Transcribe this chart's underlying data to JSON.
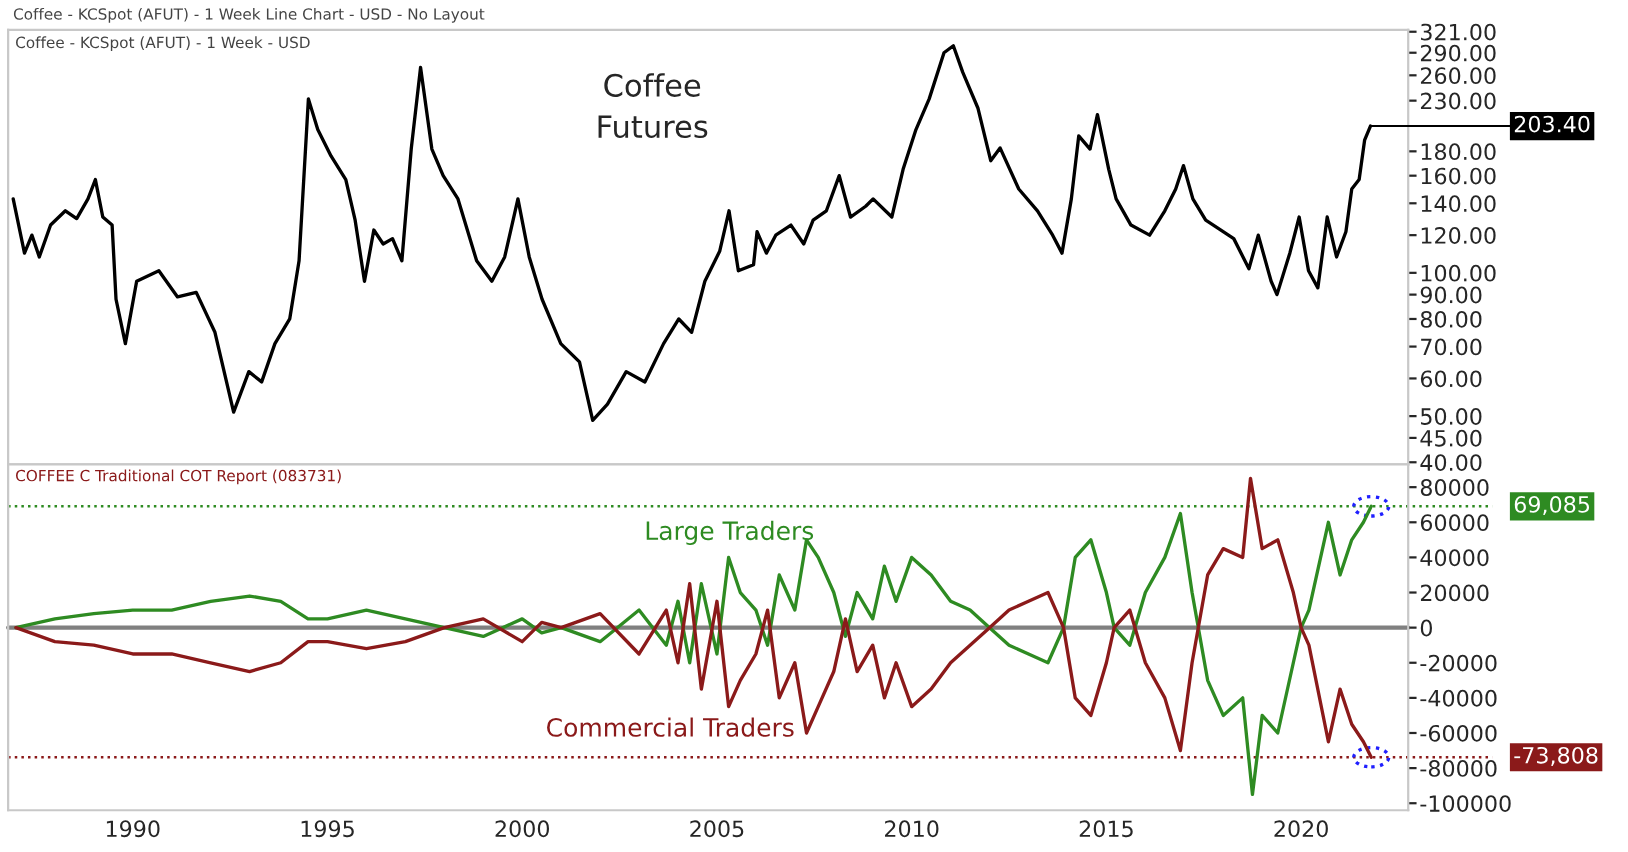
{
  "chart_data": [
    {
      "type": "line",
      "subtitle": "Coffee - KCSpot (AFUT) - 1 Week - USD",
      "annotations": [
        "Coffee - KCSpot (AFUT) - 1 Week Line Chart - USD - No Layout",
        "Coffee\nFutures",
        {
          "text": "203.40",
          "x": 2021.78,
          "y": 203.4
        }
      ],
      "series": [
        {
          "color": "#000000",
          "x": [
            1986.93,
            1987.22,
            1987.41,
            1987.6,
            1987.89,
            1988.27,
            1988.56,
            1988.85,
            1989.04,
            1989.23,
            1989.47,
            1989.57,
            1989.81,
            1990.1,
            1990.67,
            1991.15,
            1991.63,
            1992.11,
            1992.59,
            1992.98,
            1993.31,
            1993.65,
            1994.03,
            1994.27,
            1994.51,
            1994.75,
            1995.09,
            1995.47,
            1995.71,
            1995.95,
            1996.19,
            1996.43,
            1996.67,
            1996.91,
            1997.15,
            1997.39,
            1997.68,
            1997.97,
            1998.35,
            1998.83,
            1999.22,
            1999.55,
            1999.89,
            2000.18,
            2000.51,
            2000.99,
            2001.47,
            2001.81,
            2002.19,
            2002.67,
            2003.15,
            2003.63,
            2004.02,
            2004.35,
            2004.69,
            2005.07,
            2005.31,
            2005.55,
            2005.94,
            2006.03,
            2006.27,
            2006.51,
            2006.9,
            2007.23,
            2007.47,
            2007.81,
            2008.14,
            2008.43,
            2008.82,
            2009.01,
            2009.49,
            2009.78,
            2010.11,
            2010.45,
            2010.83,
            2011.07,
            2011.31,
            2011.7,
            2012.03,
            2012.27,
            2012.75,
            2013.23,
            2013.62,
            2013.86,
            2014.1,
            2014.29,
            2014.58,
            2014.77,
            2015.06,
            2015.25,
            2015.63,
            2016.11,
            2016.5,
            2016.78,
            2016.98,
            2017.22,
            2017.55,
            2017.94,
            2018.27,
            2018.66,
            2018.9,
            2019.23,
            2019.38,
            2019.71,
            2019.95,
            2020.19,
            2020.43,
            2020.67,
            2020.91,
            2021.15,
            2021.3,
            2021.49,
            2021.63,
            2021.78
          ],
          "values": [
            143,
            110,
            120,
            108,
            126,
            135,
            130,
            143,
            157,
            131,
            126,
            88,
            71,
            96,
            101,
            89,
            91,
            75,
            51,
            62,
            59,
            71,
            80,
            106,
            232,
            200,
            176,
            157,
            129,
            96,
            123,
            115,
            118,
            106,
            182,
            270,
            182,
            160,
            143,
            106,
            96,
            108,
            143,
            108,
            88,
            71,
            65,
            49,
            53,
            62,
            59,
            71,
            80,
            75,
            96,
            111,
            135,
            101,
            104,
            122,
            110,
            120,
            126,
            115,
            129,
            135,
            160,
            131,
            138,
            143,
            131,
            165,
            200,
            232,
            290,
            300,
            264,
            222,
            172,
            183,
            150,
            135,
            120,
            110,
            143,
            194,
            182,
            215,
            165,
            143,
            126,
            120,
            135,
            150,
            168,
            143,
            129,
            123,
            118,
            102,
            120,
            96,
            90,
            110,
            131,
            101,
            93,
            131,
            108,
            122,
            150,
            157,
            190,
            203.4
          ]
        }
      ],
      "log": "y",
      "xlim": [
        1986.8,
        2022.75
      ],
      "ylim": [
        39.6,
        324
      ],
      "tick_labels": "y",
      "yticks": [
        {
          "value": 321,
          "label": "321.00"
        },
        {
          "value": 290,
          "label": "290.00"
        },
        {
          "value": 260,
          "label": "260.00"
        },
        {
          "value": 230,
          "label": "230.00"
        },
        {
          "value": 180,
          "label": "180.00"
        },
        {
          "value": 160,
          "label": "160.00"
        },
        {
          "value": 140,
          "label": "140.00"
        },
        {
          "value": 120,
          "label": "120.00"
        },
        {
          "value": 100,
          "label": "100.00"
        },
        {
          "value": 90,
          "label": "90.00"
        },
        {
          "value": 80,
          "label": "80.00"
        },
        {
          "value": 70,
          "label": "70.00"
        },
        {
          "value": 60,
          "label": "60.00"
        },
        {
          "value": 50,
          "label": "50.00"
        },
        {
          "value": 45,
          "label": "45.00"
        },
        {
          "value": 40,
          "label": "40.00"
        }
      ],
      "grid": false,
      "legend": false
    },
    {
      "type": "line",
      "subtitle": "COFFEE C Traditional COT Report (083731)",
      "series": [
        {
          "name": "Large Traders",
          "color": "#2e8b22",
          "x": [
            1987.0,
            1988.0,
            1989.0,
            1990.0,
            1991.0,
            1992.0,
            1993.0,
            1993.8,
            1994.5,
            1995.0,
            1996.0,
            1997.0,
            1998.0,
            1999.0,
            2000.0,
            2000.5,
            2001.0,
            2002.0,
            2003.0,
            2003.7,
            2004.0,
            2004.3,
            2004.6,
            2005.0,
            2005.3,
            2005.6,
            2006.0,
            2006.3,
            2006.6,
            2007.0,
            2007.3,
            2007.6,
            2008.0,
            2008.3,
            2008.6,
            2009.0,
            2009.3,
            2009.6,
            2010.0,
            2010.5,
            2011.0,
            2011.5,
            2012.0,
            2012.5,
            2013.0,
            2013.5,
            2013.9,
            2014.2,
            2014.6,
            2015.0,
            2015.2,
            2015.6,
            2016.0,
            2016.5,
            2016.9,
            2017.2,
            2017.6,
            2018.0,
            2018.5,
            2018.75,
            2019.0,
            2019.4,
            2019.8,
            2020.0,
            2020.2,
            2020.7,
            2021.0,
            2021.3,
            2021.6,
            2021.8
          ],
          "values": [
            0,
            5000,
            8000,
            10000,
            10000,
            15000,
            18000,
            15000,
            5000,
            5000,
            10000,
            5000,
            0,
            -5000,
            5000,
            -3000,
            0,
            -8000,
            10000,
            -10000,
            15000,
            -20000,
            25000,
            -15000,
            40000,
            20000,
            10000,
            -10000,
            30000,
            10000,
            50000,
            40000,
            20000,
            -5000,
            20000,
            5000,
            35000,
            15000,
            40000,
            30000,
            15000,
            10000,
            0,
            -10000,
            -15000,
            -20000,
            0,
            40000,
            50000,
            20000,
            0,
            -10000,
            20000,
            40000,
            65000,
            20000,
            -30000,
            -50000,
            -40000,
            -95000,
            -50000,
            -60000,
            -20000,
            0,
            10000,
            60000,
            30000,
            50000,
            60000,
            69085
          ]
        },
        {
          "name": "Commercial Traders",
          "color": "#8b1a1a",
          "x": [
            1987.0,
            1988.0,
            1989.0,
            1990.0,
            1991.0,
            1992.0,
            1993.0,
            1993.8,
            1994.5,
            1995.0,
            1996.0,
            1997.0,
            1998.0,
            1999.0,
            2000.0,
            2000.5,
            2001.0,
            2002.0,
            2003.0,
            2003.7,
            2004.0,
            2004.3,
            2004.6,
            2005.0,
            2005.3,
            2005.6,
            2006.0,
            2006.3,
            2006.6,
            2007.0,
            2007.3,
            2007.6,
            2008.0,
            2008.3,
            2008.6,
            2009.0,
            2009.3,
            2009.6,
            2010.0,
            2010.5,
            2011.0,
            2011.5,
            2012.0,
            2012.5,
            2013.0,
            2013.5,
            2013.9,
            2014.2,
            2014.6,
            2015.0,
            2015.2,
            2015.6,
            2016.0,
            2016.5,
            2016.9,
            2017.2,
            2017.6,
            2018.0,
            2018.5,
            2018.7,
            2019.0,
            2019.4,
            2019.8,
            2020.0,
            2020.2,
            2020.7,
            2021.0,
            2021.3,
            2021.6,
            2021.8
          ],
          "values": [
            0,
            -8000,
            -10000,
            -15000,
            -15000,
            -20000,
            -25000,
            -20000,
            -8000,
            -8000,
            -12000,
            -8000,
            0,
            5000,
            -8000,
            3000,
            0,
            8000,
            -15000,
            10000,
            -20000,
            25000,
            -35000,
            15000,
            -45000,
            -30000,
            -15000,
            10000,
            -40000,
            -20000,
            -60000,
            -45000,
            -25000,
            5000,
            -25000,
            -10000,
            -40000,
            -20000,
            -45000,
            -35000,
            -20000,
            -10000,
            0,
            10000,
            15000,
            20000,
            0,
            -40000,
            -50000,
            -20000,
            0,
            10000,
            -20000,
            -40000,
            -70000,
            -20000,
            30000,
            45000,
            40000,
            85000,
            45000,
            50000,
            20000,
            0,
            -10000,
            -65000,
            -35000,
            -55000,
            -65000,
            -73808
          ]
        }
      ],
      "xlim": [
        1986.8,
        2022.75
      ],
      "ylim": [
        -104000,
        93000
      ],
      "xticks": [
        1990,
        1995,
        2000,
        2005,
        2010,
        2015,
        2020
      ],
      "yticks": [
        80000,
        60000,
        40000,
        20000,
        0,
        -20000,
        -40000,
        -60000,
        -80000,
        -100000
      ],
      "ref_lines": [
        {
          "axis": "y",
          "value": 0,
          "color": "#808080",
          "line_style": "solid"
        },
        {
          "axis": "y",
          "value": 69085,
          "label": "69,085",
          "color": "#2e8b22",
          "line_style": "dotted"
        },
        {
          "axis": "y",
          "value": -73808,
          "label": "-73,808",
          "color": "#8b1a1a",
          "line_style": "dotted"
        }
      ],
      "grid": false,
      "legend": false
    }
  ]
}
